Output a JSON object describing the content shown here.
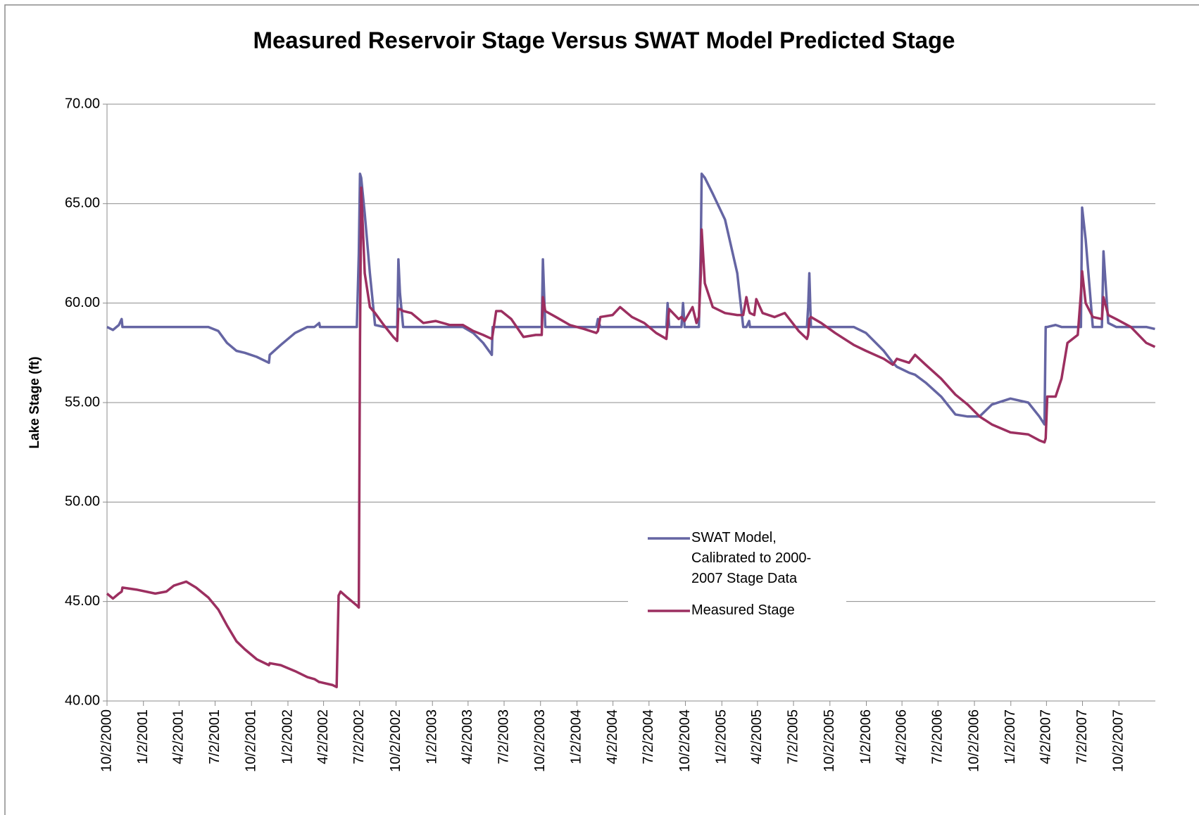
{
  "chart_data": {
    "type": "line",
    "title": "Measured Reservoir Stage Versus SWAT Model Predicted Stage",
    "y_label": "Lake Stage (ft)",
    "grid": true,
    "legend": "center",
    "xlim": [
      "2000-10-02",
      "2008-01-02"
    ],
    "ylim": [
      40,
      70
    ],
    "yticks": [
      {
        "value": 40,
        "label": "40.00"
      },
      {
        "value": 45,
        "label": "45.00"
      },
      {
        "value": 50,
        "label": "50.00"
      },
      {
        "value": 55,
        "label": "55.00"
      },
      {
        "value": 60,
        "label": "60.00"
      },
      {
        "value": 65,
        "label": "65.00"
      },
      {
        "value": 70,
        "label": "70.00"
      }
    ],
    "xticks": [
      {
        "value": "2000-10-02",
        "label": "10/2/2000"
      },
      {
        "value": "2001-01-02",
        "label": "1/2/2001"
      },
      {
        "value": "2001-04-02",
        "label": "4/2/2001"
      },
      {
        "value": "2001-07-02",
        "label": "7/2/2001"
      },
      {
        "value": "2001-10-02",
        "label": "10/2/2001"
      },
      {
        "value": "2002-01-02",
        "label": "1/2/2002"
      },
      {
        "value": "2002-04-02",
        "label": "4/2/2002"
      },
      {
        "value": "2002-07-02",
        "label": "7/2/2002"
      },
      {
        "value": "2002-10-02",
        "label": "10/2/2002"
      },
      {
        "value": "2003-01-02",
        "label": "1/2/2003"
      },
      {
        "value": "2003-04-02",
        "label": "4/2/2003"
      },
      {
        "value": "2003-07-02",
        "label": "7/2/2003"
      },
      {
        "value": "2003-10-02",
        "label": "10/2/2003"
      },
      {
        "value": "2004-01-02",
        "label": "1/2/2004"
      },
      {
        "value": "2004-04-02",
        "label": "4/2/2004"
      },
      {
        "value": "2004-07-02",
        "label": "7/2/2004"
      },
      {
        "value": "2004-10-02",
        "label": "10/2/2004"
      },
      {
        "value": "2005-01-02",
        "label": "1/2/2005"
      },
      {
        "value": "2005-04-02",
        "label": "4/2/2005"
      },
      {
        "value": "2005-07-02",
        "label": "7/2/2005"
      },
      {
        "value": "2005-10-02",
        "label": "10/2/2005"
      },
      {
        "value": "2006-01-02",
        "label": "1/2/2006"
      },
      {
        "value": "2006-04-02",
        "label": "4/2/2006"
      },
      {
        "value": "2006-07-02",
        "label": "7/2/2006"
      },
      {
        "value": "2006-10-02",
        "label": "10/2/2006"
      },
      {
        "value": "2007-01-02",
        "label": "1/2/2007"
      },
      {
        "value": "2007-04-02",
        "label": "4/2/2007"
      },
      {
        "value": "2007-07-02",
        "label": "7/2/2007"
      },
      {
        "value": "2007-10-02",
        "label": "10/2/2007"
      }
    ],
    "x": [
      "2000-10-02",
      "2000-10-17",
      "2000-11-01",
      "2000-11-08",
      "2000-11-10",
      "2000-12-15",
      "2001-02-01",
      "2001-03-01",
      "2001-03-20",
      "2001-04-20",
      "2001-05-15",
      "2001-06-15",
      "2001-07-10",
      "2001-08-01",
      "2001-08-25",
      "2001-09-15",
      "2001-10-15",
      "2001-11-15",
      "2001-11-17",
      "2001-12-15",
      "2002-01-20",
      "2002-02-20",
      "2002-03-10",
      "2002-03-22",
      "2002-03-24",
      "2002-04-25",
      "2002-05-05",
      "2002-05-10",
      "2002-05-15",
      "2002-06-01",
      "2002-06-25",
      "2002-06-30",
      "2002-07-03",
      "2002-07-06",
      "2002-07-15",
      "2002-07-28",
      "2002-08-10",
      "2002-09-01",
      "2002-09-25",
      "2002-10-05",
      "2002-10-08",
      "2002-10-12",
      "2002-10-20",
      "2002-11-10",
      "2002-12-10",
      "2003-01-10",
      "2003-02-15",
      "2003-03-20",
      "2003-04-15",
      "2003-05-10",
      "2003-06-01",
      "2003-06-03",
      "2003-06-12",
      "2003-06-25",
      "2003-07-20",
      "2003-08-20",
      "2003-09-20",
      "2003-10-05",
      "2003-10-08",
      "2003-10-14",
      "2003-11-10",
      "2003-12-15",
      "2004-01-20",
      "2004-02-20",
      "2004-02-24",
      "2004-03-01",
      "2004-04-01",
      "2004-04-20",
      "2004-05-20",
      "2004-06-20",
      "2004-07-20",
      "2004-08-15",
      "2004-08-18",
      "2004-08-22",
      "2004-09-15",
      "2004-09-22",
      "2004-09-26",
      "2004-09-30",
      "2004-10-20",
      "2004-10-30",
      "2004-11-05",
      "2004-11-10",
      "2004-11-12",
      "2004-11-20",
      "2004-12-10",
      "2005-01-10",
      "2005-02-10",
      "2005-02-25",
      "2005-03-05",
      "2005-03-12",
      "2005-03-14",
      "2005-03-25",
      "2005-03-30",
      "2005-04-15",
      "2005-05-15",
      "2005-06-10",
      "2005-07-15",
      "2005-08-05",
      "2005-08-08",
      "2005-08-11",
      "2005-08-15",
      "2005-09-10",
      "2005-10-15",
      "2005-12-01",
      "2006-01-01",
      "2006-02-15",
      "2006-03-10",
      "2006-03-20",
      "2006-04-20",
      "2006-05-05",
      "2006-06-01",
      "2006-07-10",
      "2006-08-15",
      "2006-09-15",
      "2006-10-15",
      "2006-11-15",
      "2007-01-01",
      "2007-02-15",
      "2007-03-15",
      "2007-03-28",
      "2007-03-31",
      "2007-04-04",
      "2007-04-25",
      "2007-05-10",
      "2007-05-25",
      "2007-06-20",
      "2007-06-28",
      "2007-07-01",
      "2007-07-10",
      "2007-07-28",
      "2007-08-20",
      "2007-08-24",
      "2007-09-05",
      "2007-09-25",
      "2007-11-01",
      "2007-12-10",
      "2008-01-01"
    ],
    "series": [
      {
        "name": "SWAT Model, Calibrated to 2000-2007 Stage Data",
        "color": "#6565a3",
        "values": [
          58.8,
          58.65,
          58.9,
          59.2,
          58.8,
          58.8,
          58.8,
          58.8,
          58.8,
          58.8,
          58.8,
          58.8,
          58.6,
          58.0,
          57.6,
          57.5,
          57.3,
          57.0,
          57.4,
          57.9,
          58.5,
          58.8,
          58.8,
          59.0,
          58.8,
          58.8,
          58.8,
          58.8,
          58.8,
          58.8,
          58.8,
          62.5,
          66.5,
          66.3,
          64.5,
          61.5,
          58.9,
          58.8,
          58.8,
          58.8,
          62.2,
          60.5,
          58.8,
          58.8,
          58.8,
          58.8,
          58.8,
          58.8,
          58.5,
          58.0,
          57.4,
          58.8,
          58.8,
          58.8,
          58.8,
          58.8,
          58.8,
          58.8,
          62.2,
          58.8,
          58.8,
          58.8,
          58.8,
          58.8,
          59.2,
          58.8,
          58.8,
          58.8,
          58.8,
          58.8,
          58.8,
          58.8,
          60.0,
          58.8,
          58.8,
          58.8,
          60.0,
          58.8,
          58.8,
          58.8,
          58.8,
          63.0,
          66.5,
          66.3,
          65.5,
          64.2,
          61.5,
          58.8,
          58.8,
          59.1,
          58.8,
          58.8,
          58.8,
          58.8,
          58.8,
          58.8,
          58.8,
          58.8,
          59.8,
          61.5,
          58.8,
          58.8,
          58.8,
          58.8,
          58.5,
          57.6,
          57.0,
          56.8,
          56.5,
          56.4,
          56.0,
          55.3,
          54.4,
          54.3,
          54.3,
          54.9,
          55.2,
          55.0,
          54.3,
          53.9,
          58.8,
          58.8,
          58.9,
          58.8,
          58.8,
          58.8,
          58.8,
          64.8,
          63.2,
          58.8,
          58.8,
          62.6,
          59.0,
          58.8,
          58.8,
          58.8,
          58.7
        ]
      },
      {
        "name": "Measured Stage",
        "color": "#9c2f60",
        "values": [
          45.4,
          45.15,
          45.4,
          45.5,
          45.7,
          45.6,
          45.4,
          45.5,
          45.8,
          46.0,
          45.7,
          45.2,
          44.6,
          43.8,
          43.0,
          42.6,
          42.1,
          41.8,
          41.9,
          41.8,
          41.5,
          41.2,
          41.1,
          40.95,
          40.95,
          40.8,
          40.7,
          45.3,
          45.5,
          45.2,
          44.8,
          44.7,
          58.0,
          65.8,
          61.5,
          59.8,
          59.5,
          58.9,
          58.3,
          58.1,
          59.7,
          59.7,
          59.6,
          59.5,
          59.0,
          59.1,
          58.9,
          58.9,
          58.6,
          58.4,
          58.2,
          58.4,
          59.6,
          59.6,
          59.2,
          58.3,
          58.4,
          58.4,
          60.3,
          59.6,
          59.3,
          58.9,
          58.7,
          58.5,
          58.6,
          59.3,
          59.4,
          59.8,
          59.3,
          59.0,
          58.5,
          58.2,
          58.9,
          59.7,
          59.2,
          59.3,
          59.2,
          59.1,
          59.8,
          59.0,
          59.3,
          61.5,
          63.7,
          61.0,
          59.8,
          59.5,
          59.4,
          59.4,
          60.3,
          59.6,
          59.5,
          59.4,
          60.2,
          59.5,
          59.3,
          59.5,
          58.6,
          58.2,
          58.4,
          59.2,
          59.3,
          59.0,
          58.5,
          57.9,
          57.6,
          57.2,
          56.9,
          57.2,
          57.0,
          57.4,
          56.9,
          56.2,
          55.4,
          54.9,
          54.3,
          53.9,
          53.5,
          53.4,
          53.1,
          53.0,
          53.2,
          55.3,
          55.3,
          56.2,
          58.0,
          58.4,
          60.5,
          61.6,
          60.0,
          59.3,
          59.2,
          60.3,
          59.4,
          59.2,
          58.8,
          58.0,
          57.8
        ]
      }
    ]
  }
}
